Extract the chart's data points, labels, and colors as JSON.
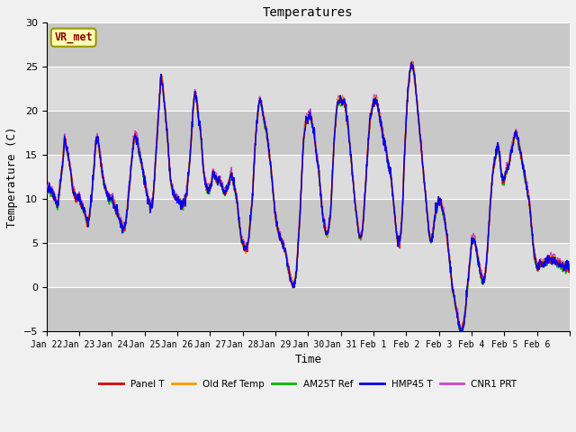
{
  "title": "Temperatures",
  "xlabel": "Time",
  "ylabel": "Temperature (C)",
  "ylim": [
    -5,
    30
  ],
  "annotation_text": "VR_met",
  "legend_labels": [
    "Panel T",
    "Old Ref Temp",
    "AM25T Ref",
    "HMP45 T",
    "CNR1 PRT"
  ],
  "legend_colors": [
    "#dd0000",
    "#ff9900",
    "#00bb00",
    "#0000ee",
    "#cc44cc"
  ],
  "xtick_labels": [
    "Jan 22",
    "Jan 23",
    "Jan 24",
    "Jan 25",
    "Jan 26",
    "Jan 27",
    "Jan 28",
    "Jan 29",
    "Jan 30",
    "Jan 31",
    "Feb 1",
    "Feb 2",
    "Feb 3",
    "Feb 4",
    "Feb 5",
    "Feb 6"
  ],
  "bg_color": "#dcdcdc",
  "plot_bg_color": "#dcdcdc",
  "band_light": "#dcdcdc",
  "band_dark": "#c8c8c8",
  "grid_color": "#ffffff",
  "yticks": [
    -5,
    0,
    5,
    10,
    15,
    20,
    25,
    30
  ],
  "linewidth": 1.0,
  "figwidth": 6.4,
  "figheight": 4.8,
  "dpi": 100
}
